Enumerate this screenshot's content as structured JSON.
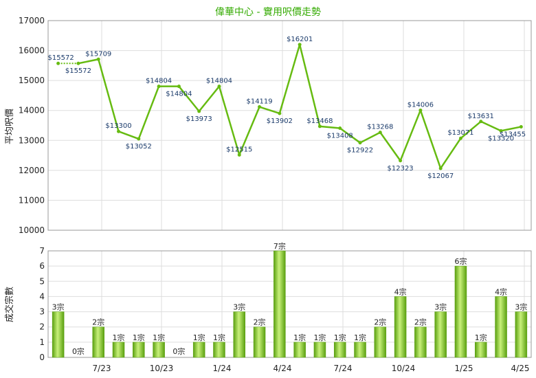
{
  "title": "偉華中心 - 實用呎價走勢",
  "colors": {
    "line": "#66bb11",
    "bar_dark": "#5aa010",
    "bar_light": "#c8f07a",
    "grid": "#dddddd",
    "label": "#1a3a6a",
    "title": "#33aa00"
  },
  "chart_data": [
    {
      "type": "line",
      "ylabel": "平均呎價",
      "ylim": [
        10000,
        17000
      ],
      "yticks": [
        "10000",
        "11000",
        "12000",
        "13000",
        "14000",
        "15000",
        "16000",
        "17000"
      ],
      "values": [
        15572,
        15572,
        15709,
        13300,
        13052,
        14804,
        14804,
        13973,
        14804,
        12515,
        14119,
        13902,
        16201,
        13468,
        13408,
        12922,
        13268,
        12323,
        14006,
        12067,
        13071,
        13631,
        13320,
        13455
      ],
      "labels": [
        "$15572",
        "$15572",
        "$15709",
        "$13300",
        "$13052",
        "$14804",
        "$14804",
        "$13973",
        "$14804",
        "$12515",
        "$14119",
        "$13902",
        "$16201",
        "$13468",
        "$13408",
        "$12922",
        "$13268",
        "$12323",
        "$14006",
        "$12067",
        "$13071",
        "$13631",
        "$13320",
        "$13455"
      ],
      "xticks": [
        "7/23",
        "10/23",
        "1/24",
        "4/24",
        "7/24",
        "10/24",
        "1/25",
        "4/25"
      ],
      "grid": true
    },
    {
      "type": "bar",
      "ylabel": "成交宗數",
      "ylim": [
        0,
        7
      ],
      "yticks": [
        "0",
        "1",
        "2",
        "3",
        "4",
        "5",
        "6",
        "7"
      ],
      "values": [
        3,
        0,
        2,
        1,
        1,
        1,
        0,
        1,
        1,
        3,
        2,
        7,
        1,
        1,
        1,
        1,
        2,
        4,
        2,
        3,
        6,
        1,
        4,
        3
      ],
      "labels": [
        "3宗",
        "0宗",
        "2宗",
        "1宗",
        "1宗",
        "1宗",
        "0宗",
        "1宗",
        "1宗",
        "3宗",
        "2宗",
        "7宗",
        "1宗",
        "1宗",
        "1宗",
        "1宗",
        "2宗",
        "4宗",
        "2宗",
        "3宗",
        "6宗",
        "1宗",
        "4宗",
        "3宗"
      ],
      "xticks": [
        "7/23",
        "10/23",
        "1/24",
        "4/24",
        "7/24",
        "10/24",
        "1/25",
        "4/25"
      ],
      "grid": true
    }
  ]
}
